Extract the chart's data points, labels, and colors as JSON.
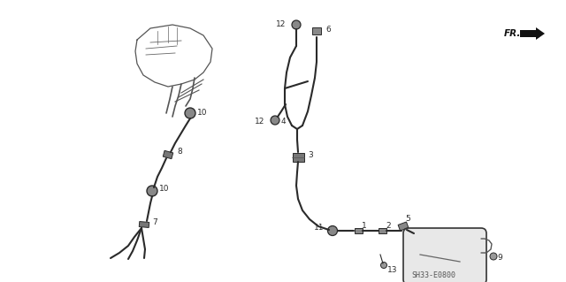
{
  "bg_color": "#ffffff",
  "line_color": "#2a2a2a",
  "part_number": "SH33-E0800",
  "fr_label": "FR.",
  "fig_w": 6.4,
  "fig_h": 3.19,
  "dpi": 100
}
